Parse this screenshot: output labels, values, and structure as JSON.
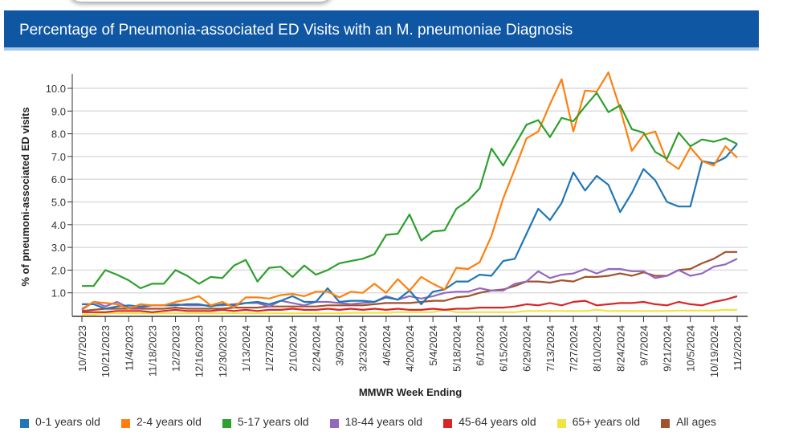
{
  "header": {
    "title": "Percentage of Pneumonia-associated ED Visits with an M. pneumoniae Diagnosis"
  },
  "chart_data": {
    "type": "line",
    "title": "Percentage of Pneumonia-associated ED Visits with an M. pneumoniae Diagnosis",
    "xlabel": "MMWR Week Ending",
    "ylabel": "% of pneumoni-associated ED visits",
    "ylim": [
      0,
      10.5
    ],
    "yticks": [
      "1.0",
      "2.0",
      "3.0",
      "4.0",
      "5.0",
      "6.0",
      "7.0",
      "8.0",
      "9.0",
      "10.0"
    ],
    "ytick_values": [
      1,
      2,
      3,
      4,
      5,
      6,
      7,
      8,
      9,
      10
    ],
    "grid": true,
    "legend_position": "bottom",
    "x_start": "10/7/2023",
    "x_end": "11/2/2024",
    "x_interval": "weekly",
    "xtick_labels": [
      "10/7/2023",
      "10/21/2023",
      "11/4/2023",
      "11/18/2023",
      "12/2/2023",
      "12/16/2023",
      "12/30/2023",
      "1/13/2024",
      "1/27/2024",
      "2/10/2024",
      "2/24/2024",
      "3/9/2024",
      "3/23/2024",
      "4/6/2024",
      "4/20/2024",
      "5/4/2024",
      "5/18/2024",
      "6/1/2024",
      "6/15/2024",
      "6/29/2024",
      "7/13/2024",
      "7/27/2024",
      "8/10/2024",
      "8/24/2024",
      "9/7/2024",
      "9/21/2024",
      "10/5/2024",
      "10/19/2024",
      "11/2/2024"
    ],
    "series": [
      {
        "name": "0-1 years old",
        "color": "#1f77b4",
        "values": [
          0.5,
          0.5,
          0.3,
          0.4,
          0.45,
          0.4,
          0.45,
          0.45,
          0.45,
          0.5,
          0.5,
          0.4,
          0.5,
          0.45,
          0.55,
          0.6,
          0.5,
          0.65,
          0.85,
          0.6,
          0.6,
          1.2,
          0.6,
          0.65,
          0.65,
          0.6,
          0.8,
          0.7,
          1.1,
          0.5,
          1.05,
          1.15,
          1.5,
          1.5,
          1.8,
          1.75,
          2.4,
          2.5,
          3.6,
          4.7,
          4.2,
          4.95,
          6.3,
          5.5,
          6.15,
          5.75,
          4.55,
          5.4,
          6.45,
          5.95,
          5.0,
          4.8,
          4.8,
          6.8,
          6.7,
          6.95,
          7.55
        ]
      },
      {
        "name": "2-4 years old",
        "color": "#ff7f0e",
        "values": [
          0.3,
          0.6,
          0.55,
          0.5,
          0.3,
          0.5,
          0.45,
          0.45,
          0.6,
          0.7,
          0.85,
          0.45,
          0.6,
          0.35,
          0.8,
          0.8,
          0.75,
          0.9,
          0.95,
          0.85,
          1.05,
          1.05,
          0.8,
          1.05,
          1.0,
          1.4,
          1.0,
          1.6,
          1.1,
          1.7,
          1.4,
          1.15,
          2.1,
          2.05,
          2.35,
          3.5,
          5.15,
          6.45,
          7.8,
          8.1,
          9.3,
          10.4,
          8.1,
          9.9,
          9.85,
          10.7,
          9.1,
          7.25,
          7.95,
          8.1,
          6.8,
          6.45,
          7.4,
          6.8,
          6.6,
          7.45,
          6.95
        ]
      },
      {
        "name": "5-17 years old",
        "color": "#2ca02c",
        "values": [
          1.3,
          1.3,
          2.0,
          1.8,
          1.55,
          1.2,
          1.4,
          1.4,
          2.0,
          1.75,
          1.4,
          1.7,
          1.65,
          2.2,
          2.45,
          1.5,
          2.1,
          2.15,
          1.7,
          2.2,
          1.8,
          2.0,
          2.3,
          2.4,
          2.5,
          2.7,
          3.55,
          3.6,
          4.45,
          3.3,
          3.7,
          3.75,
          4.7,
          5.05,
          5.6,
          7.35,
          6.6,
          7.5,
          8.4,
          8.6,
          7.85,
          8.7,
          8.55,
          9.2,
          9.8,
          8.95,
          9.25,
          8.2,
          8.05,
          7.2,
          6.9,
          8.05,
          7.45,
          7.75,
          7.65,
          7.8,
          7.55
        ]
      },
      {
        "name": "18-44 years old",
        "color": "#9467bd",
        "values": [
          0.25,
          0.6,
          0.4,
          0.6,
          0.35,
          0.35,
          0.45,
          0.45,
          0.5,
          0.45,
          0.45,
          0.45,
          0.45,
          0.5,
          0.55,
          0.55,
          0.4,
          0.65,
          0.55,
          0.45,
          0.6,
          0.6,
          0.55,
          0.5,
          0.55,
          0.6,
          0.85,
          0.7,
          0.85,
          0.75,
          0.85,
          1.0,
          1.05,
          1.05,
          1.2,
          1.1,
          1.1,
          1.4,
          1.5,
          1.95,
          1.65,
          1.8,
          1.85,
          2.05,
          1.85,
          2.05,
          2.05,
          1.95,
          1.95,
          1.65,
          1.75,
          2.0,
          1.75,
          1.85,
          2.15,
          2.25,
          2.5
        ]
      },
      {
        "name": "45-64 years old",
        "color": "#d62728",
        "values": [
          0.15,
          0.15,
          0.15,
          0.2,
          0.2,
          0.2,
          0.15,
          0.2,
          0.25,
          0.2,
          0.2,
          0.2,
          0.25,
          0.2,
          0.25,
          0.2,
          0.25,
          0.25,
          0.3,
          0.25,
          0.25,
          0.3,
          0.25,
          0.3,
          0.25,
          0.3,
          0.25,
          0.3,
          0.25,
          0.25,
          0.3,
          0.25,
          0.3,
          0.3,
          0.35,
          0.35,
          0.35,
          0.4,
          0.5,
          0.45,
          0.55,
          0.45,
          0.6,
          0.65,
          0.45,
          0.5,
          0.55,
          0.55,
          0.6,
          0.5,
          0.45,
          0.6,
          0.5,
          0.45,
          0.6,
          0.7,
          0.85
        ]
      },
      {
        "name": "65+ years old",
        "color": "#f0e442",
        "values": [
          0.05,
          0.05,
          0.1,
          0.1,
          0.1,
          0.1,
          0.1,
          0.1,
          0.1,
          0.1,
          0.1,
          0.1,
          0.1,
          0.1,
          0.1,
          0.1,
          0.1,
          0.1,
          0.1,
          0.1,
          0.1,
          0.1,
          0.1,
          0.12,
          0.12,
          0.12,
          0.12,
          0.15,
          0.15,
          0.15,
          0.15,
          0.25,
          0.15,
          0.15,
          0.15,
          0.15,
          0.15,
          0.15,
          0.2,
          0.2,
          0.2,
          0.2,
          0.2,
          0.2,
          0.25,
          0.2,
          0.2,
          0.2,
          0.2,
          0.2,
          0.2,
          0.22,
          0.22,
          0.22,
          0.22,
          0.25,
          0.25
        ]
      },
      {
        "name": "All ages",
        "color": "#a0522d",
        "values": [
          0.2,
          0.25,
          0.3,
          0.3,
          0.3,
          0.3,
          0.3,
          0.3,
          0.35,
          0.3,
          0.3,
          0.3,
          0.3,
          0.35,
          0.35,
          0.35,
          0.4,
          0.4,
          0.4,
          0.4,
          0.4,
          0.45,
          0.45,
          0.45,
          0.45,
          0.5,
          0.55,
          0.55,
          0.55,
          0.6,
          0.65,
          0.65,
          0.8,
          0.85,
          1.0,
          1.1,
          1.15,
          1.3,
          1.5,
          1.5,
          1.45,
          1.55,
          1.5,
          1.7,
          1.7,
          1.75,
          1.85,
          1.75,
          1.9,
          1.75,
          1.75,
          2.0,
          2.05,
          2.3,
          2.5,
          2.8,
          2.8
        ]
      }
    ]
  }
}
